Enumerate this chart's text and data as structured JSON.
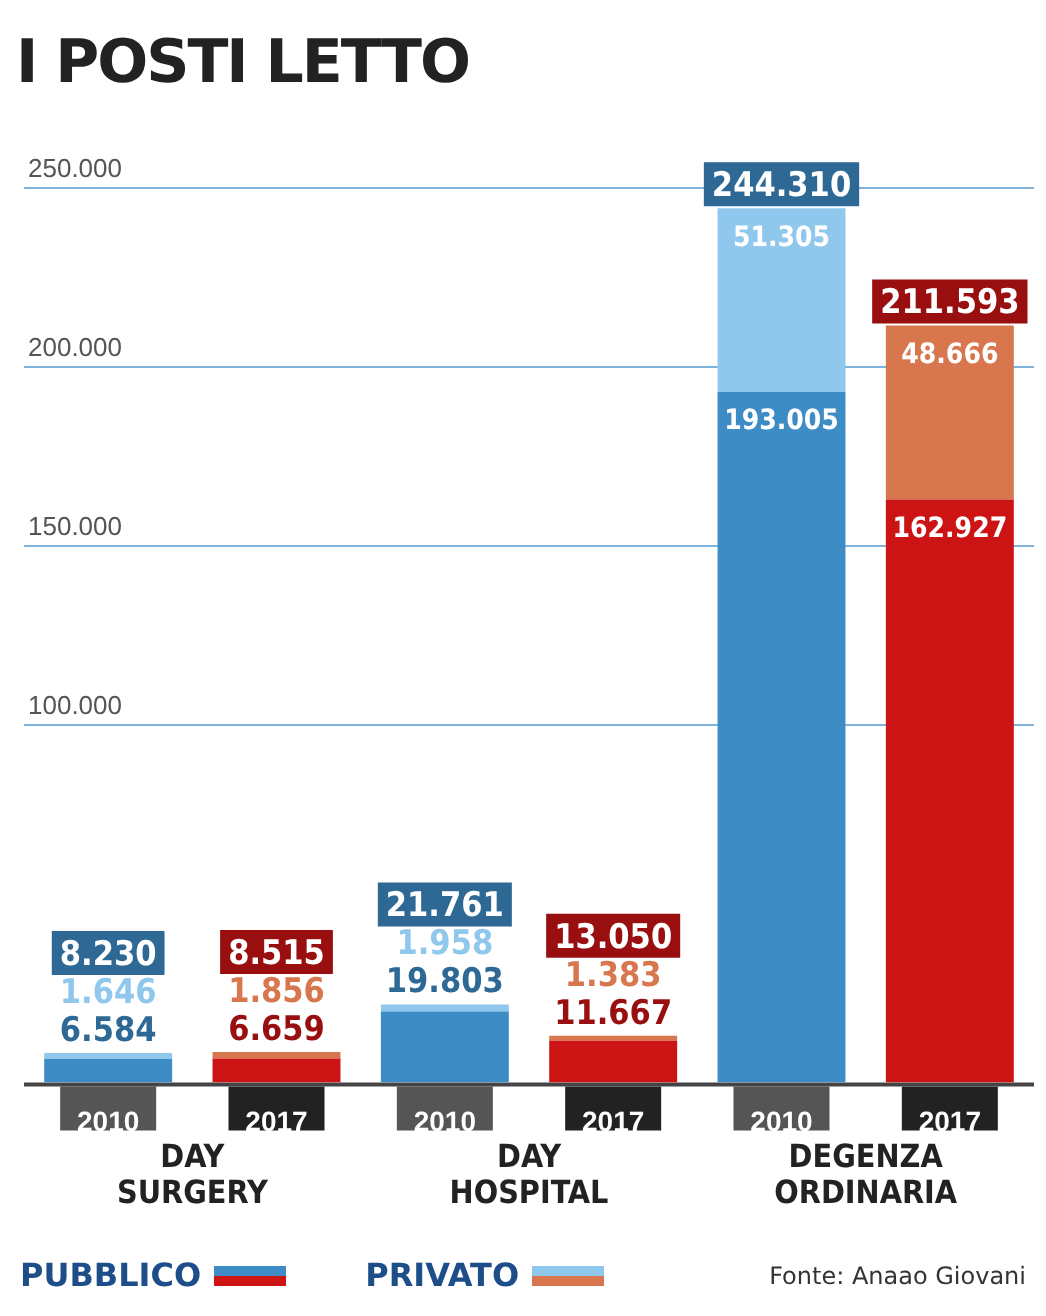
{
  "chart_data": {
    "type": "bar",
    "title": "I POSTI LETTO",
    "stacked": true,
    "categories": [
      "2010",
      "2017",
      "2010",
      "2017",
      "2010",
      "2017"
    ],
    "series": [
      {
        "name": "PUBBLICO",
        "colors": [
          "#3d8cc6",
          "#cc1414",
          "#3d8cc6",
          "#cc1414",
          "#3d8cc6",
          "#cc1414"
        ],
        "values": [
          6584,
          6659,
          19803,
          11667,
          193005,
          162927
        ],
        "value_labels": [
          "6.584",
          "6.659",
          "19.803",
          "11.667",
          "193.005",
          "162.927"
        ]
      },
      {
        "name": "PRIVATO",
        "colors": [
          "#8fc8ec",
          "#d8764e",
          "#8fc8ec",
          "#d8764e",
          "#8fc8ec",
          "#d8764e"
        ],
        "values": [
          1646,
          1856,
          1958,
          1383,
          51305,
          48666
        ],
        "value_labels": [
          "1.646",
          "1.856",
          "1.958",
          "1.383",
          "51.305",
          "48.666"
        ]
      }
    ],
    "totals": [
      "8.230",
      "8.515",
      "21.761",
      "13.050",
      "244.310",
      "211.593"
    ],
    "ylim": [
      0,
      250000
    ],
    "yticks": [
      {
        "value": 100000,
        "label": "100.000"
      },
      {
        "value": 150000,
        "label": "150.000"
      },
      {
        "value": 200000,
        "label": "200.000"
      },
      {
        "value": 250000,
        "label": "250.000"
      }
    ],
    "grid": "y",
    "legend": "bottom left",
    "annotations": [
      "DAY SURGERY",
      "DAY HOSPITAL",
      "DEGENZA ORDINARIA",
      "Fonte: Anaao Giovani"
    ]
  }
}
